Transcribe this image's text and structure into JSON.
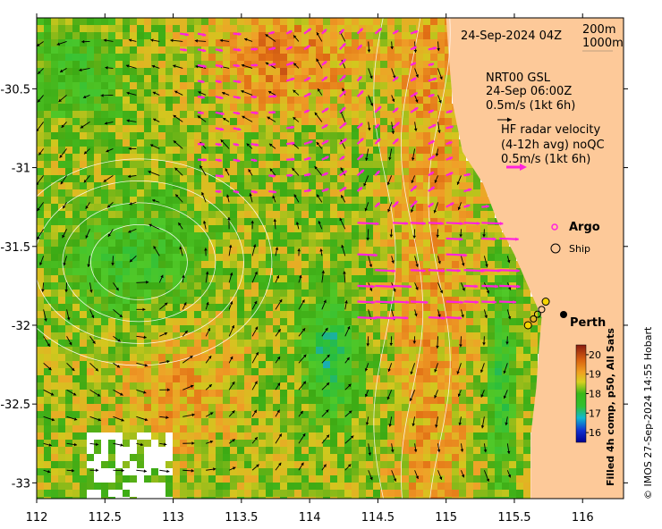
{
  "map": {
    "timestamp": "24-Sep-2024 04Z",
    "isobath_labels": [
      "200m",
      "1000m"
    ],
    "model_legend": {
      "line1": "NRT00 GSL",
      "line2": "24-Sep 06:00Z",
      "line3": "0.5m/s (1kt 6h)"
    },
    "radar_legend": {
      "line1": "HF radar velocity",
      "line2": "(4-12h avg) noQC",
      "line3": "0.5m/s (1kt 6h)"
    },
    "symbols": {
      "argo": "Argo",
      "ship": "Ship"
    },
    "places": [
      {
        "name": "Perth",
        "lon": 115.86,
        "lat": -31.95
      }
    ],
    "colorbar": {
      "title": "Filled 4h comp, p50, All Sats",
      "ticks": [
        "20",
        "19",
        "18",
        "17",
        "16"
      ],
      "range": [
        15.5,
        20.5
      ]
    },
    "credit": "© IMOS 27-Sep-2024 14:55 Hobart",
    "x_axis": {
      "range": [
        112,
        116.3
      ],
      "ticks": [
        "112",
        "112.5",
        "113",
        "113.5",
        "114",
        "114.5",
        "115",
        "115.5",
        "116"
      ]
    },
    "y_axis": {
      "range": [
        -33.1,
        -30.05
      ],
      "ticks": [
        "-30.5",
        "-31",
        "-31.5",
        "-32",
        "-32.5",
        "-33"
      ]
    },
    "colors": {
      "land": "#fdc999",
      "model_arrow": "#000000",
      "radar_arrow": "#ff22dd",
      "contour": "#ffffff",
      "argo": "#ff22dd",
      "marker_yellow": "#f5d400"
    }
  }
}
